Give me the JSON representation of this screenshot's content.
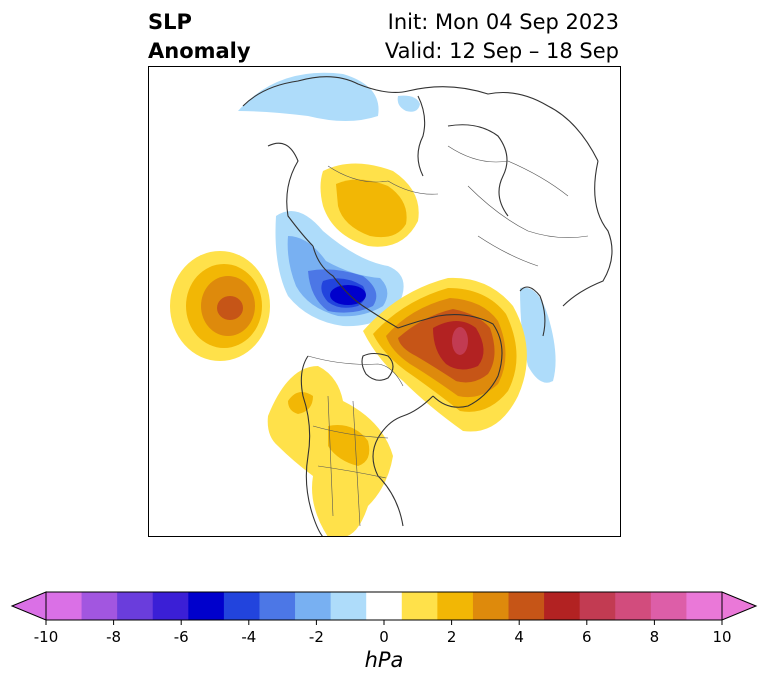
{
  "title": {
    "left_line1": "SLP",
    "left_line2": "Anomaly",
    "right_line1": "Init: Mon 04 Sep 2023",
    "right_line2": "Valid: 12 Sep – 18 Sep"
  },
  "colorbar": {
    "unit": "hPa",
    "ticks": [
      "-10",
      "-8",
      "-6",
      "-4",
      "-2",
      "0",
      "2",
      "4",
      "6",
      "8",
      "10"
    ],
    "colors": [
      "#da70e6",
      "#a256e0",
      "#6a3ddc",
      "#3b1fd6",
      "#0000cc",
      "#2244dd",
      "#4c77e6",
      "#78b0f2",
      "#aedcfa",
      "#ffffff",
      "#ffe14a",
      "#f2b705",
      "#de8a0c",
      "#c65517",
      "#b22222",
      "#c23b52",
      "#d24c7d",
      "#dd5ea8",
      "#ea78d8"
    ],
    "min_extend_color": "#da70e6",
    "max_extend_color": "#ea78d8"
  },
  "map": {
    "projection": "polar stereographic, North America",
    "anomaly_features": [
      {
        "name": "positive anomaly over Greenland / Baffin Bay",
        "peak_hpa": "7"
      },
      {
        "name": "positive anomaly over North Pacific",
        "peak_hpa": "5"
      },
      {
        "name": "positive anomaly over Siberia",
        "peak_hpa": "2"
      },
      {
        "name": "positive anomaly over western / central North America",
        "peak_hpa": "2"
      },
      {
        "name": "negative anomaly over Alaska / Bering region",
        "peak_hpa": "-6"
      },
      {
        "name": "negative anomaly over Scandinavia",
        "peak_hpa": "-1"
      },
      {
        "name": "negative anomaly near Europe / Arctic Ocean",
        "peak_hpa": "-1"
      }
    ]
  }
}
